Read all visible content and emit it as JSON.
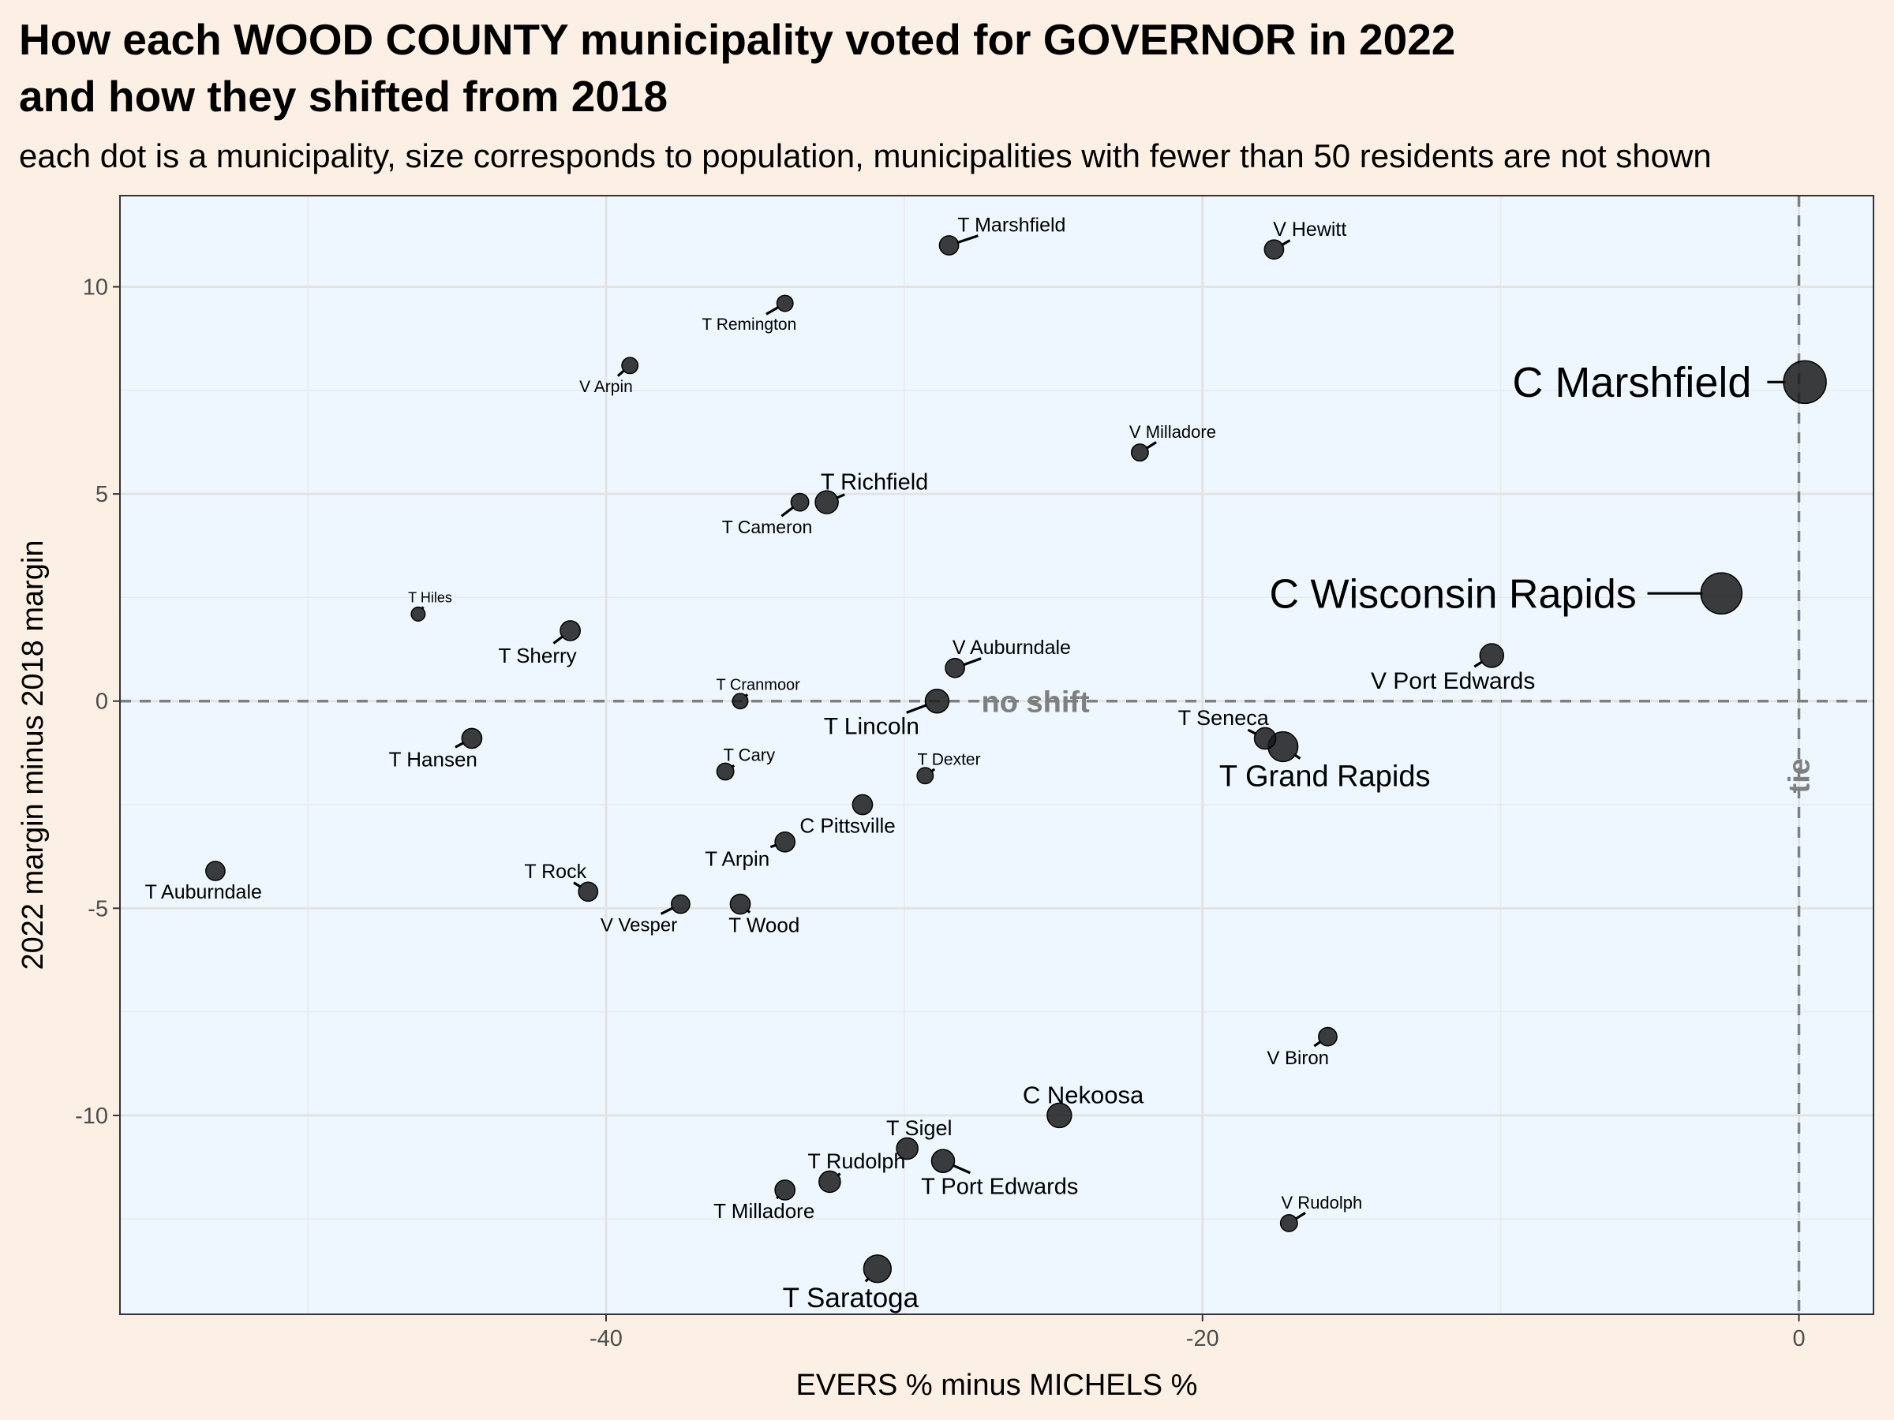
{
  "chart_data": {
    "type": "scatter",
    "title_lines": [
      "How each WOOD COUNTY municipality voted for GOVERNOR in 2022",
      "and how they shifted from 2018"
    ],
    "subtitle": "each dot is a municipality, size corresponds to population, municipalities with fewer than 50 residents are not shown",
    "xlabel": "EVERS % minus MICHELS %",
    "ylabel": "2022 margin minus 2018 margin",
    "xlim": [
      -56.3,
      2.5
    ],
    "ylim": [
      -14.8,
      12.2
    ],
    "x_ticks": [
      -40,
      -20,
      0
    ],
    "y_ticks": [
      10,
      5,
      0,
      -5,
      -10
    ],
    "reference_lines": {
      "horizontal": {
        "y": 0,
        "label": "no shift"
      },
      "vertical": {
        "x": 0,
        "label": "tie"
      }
    },
    "colors": {
      "background": "#fcf0e4",
      "panel": "#eef7ff",
      "point": "#1a1a1a",
      "reference": "#7f7f7f"
    },
    "points": [
      {
        "name": "C Marshfield",
        "x": 0.2,
        "y": 7.7,
        "size": 5,
        "lx": -5.6,
        "ly": 7.7
      },
      {
        "name": "C Wisconsin Rapids",
        "x": -2.6,
        "y": 2.6,
        "size": 4.8,
        "lx": -11.6,
        "ly": 2.6
      },
      {
        "name": "T Grand Rapids",
        "x": -17.3,
        "y": -1.1,
        "size": 3.3,
        "lx": -15.9,
        "ly": -1.8
      },
      {
        "name": "T Saratoga",
        "x": -30.9,
        "y": -13.7,
        "size": 3.0,
        "lx": -31.8,
        "ly": -14.4
      },
      {
        "name": "C Nekoosa",
        "x": -24.8,
        "y": -10.0,
        "size": 2.6,
        "lx": -24.0,
        "ly": -9.5
      },
      {
        "name": "T Lincoln",
        "x": -28.9,
        "y": 0.0,
        "size": 2.5,
        "lx": -31.1,
        "ly": -0.6
      },
      {
        "name": "V Port Edwards",
        "x": -10.3,
        "y": 1.1,
        "size": 2.5,
        "lx": -11.6,
        "ly": 0.5
      },
      {
        "name": "T Richfield",
        "x": -32.6,
        "y": 4.8,
        "size": 2.4,
        "lx": -31.0,
        "ly": 5.3
      },
      {
        "name": "T Port Edwards",
        "x": -28.7,
        "y": -11.1,
        "size": 2.4,
        "lx": -26.8,
        "ly": -11.7
      },
      {
        "name": "T Rudolph",
        "x": -32.5,
        "y": -11.6,
        "size": 2.2,
        "lx": -31.6,
        "ly": -11.1
      },
      {
        "name": "T Sigel",
        "x": -29.9,
        "y": -10.8,
        "size": 2.2,
        "lx": -29.5,
        "ly": -10.3
      },
      {
        "name": "T Seneca",
        "x": -17.9,
        "y": -0.9,
        "size": 2.2,
        "lx": -19.3,
        "ly": -0.4
      },
      {
        "name": "T Milladore",
        "x": -34.0,
        "y": -11.8,
        "size": 2.0,
        "lx": -34.7,
        "ly": -12.3
      },
      {
        "name": "T Arpin",
        "x": -34.0,
        "y": -3.4,
        "size": 2.0,
        "lx": -35.6,
        "ly": -3.8
      },
      {
        "name": "C Pittsville",
        "x": -31.4,
        "y": -2.5,
        "size": 2.0,
        "lx": -31.9,
        "ly": -3.0
      },
      {
        "name": "T Wood",
        "x": -35.5,
        "y": -4.9,
        "size": 2.0,
        "lx": -34.7,
        "ly": -5.4
      },
      {
        "name": "T Hansen",
        "x": -44.5,
        "y": -0.9,
        "size": 2.0,
        "lx": -45.8,
        "ly": -1.4
      },
      {
        "name": "T Sherry",
        "x": -41.2,
        "y": 1.7,
        "size": 2.0,
        "lx": -42.3,
        "ly": 1.1
      },
      {
        "name": "T Rock",
        "x": -40.6,
        "y": -4.6,
        "size": 1.9,
        "lx": -41.7,
        "ly": -4.1
      },
      {
        "name": "T Auburndale",
        "x": -53.1,
        "y": -4.1,
        "size": 1.9,
        "lx": -53.5,
        "ly": -4.6
      },
      {
        "name": "T Marshfield",
        "x": -28.5,
        "y": 11.0,
        "size": 1.9,
        "lx": -26.4,
        "ly": 11.5
      },
      {
        "name": "V Hewitt",
        "x": -17.6,
        "y": 10.9,
        "size": 1.9,
        "lx": -16.4,
        "ly": 11.4
      },
      {
        "name": "V Auburndale",
        "x": -28.3,
        "y": 0.8,
        "size": 1.9,
        "lx": -26.4,
        "ly": 1.3
      },
      {
        "name": "V Vesper",
        "x": -37.5,
        "y": -4.9,
        "size": 1.8,
        "lx": -38.9,
        "ly": -5.4
      },
      {
        "name": "V Biron",
        "x": -15.8,
        "y": -8.1,
        "size": 1.8,
        "lx": -16.8,
        "ly": -8.6
      },
      {
        "name": "T Cameron",
        "x": -33.5,
        "y": 4.8,
        "size": 1.7,
        "lx": -34.6,
        "ly": 4.2
      },
      {
        "name": "V Milladore",
        "x": -22.1,
        "y": 6.0,
        "size": 1.6,
        "lx": -21.0,
        "ly": 6.5
      },
      {
        "name": "V Rudolph",
        "x": -17.1,
        "y": -12.6,
        "size": 1.6,
        "lx": -16.0,
        "ly": -12.1
      },
      {
        "name": "T Cary",
        "x": -36.0,
        "y": -1.7,
        "size": 1.6,
        "lx": -35.2,
        "ly": -1.3
      },
      {
        "name": "T Dexter",
        "x": -29.3,
        "y": -1.8,
        "size": 1.5,
        "lx": -28.5,
        "ly": -1.4
      },
      {
        "name": "T Remington",
        "x": -34.0,
        "y": 9.6,
        "size": 1.5,
        "lx": -35.2,
        "ly": 9.1
      },
      {
        "name": "V Arpin",
        "x": -39.2,
        "y": 8.1,
        "size": 1.5,
        "lx": -40.0,
        "ly": 7.6
      },
      {
        "name": "T Cranmoor",
        "x": -35.5,
        "y": 0.0,
        "size": 1.4,
        "lx": -34.9,
        "ly": 0.4
      },
      {
        "name": "T Hiles",
        "x": -46.3,
        "y": 2.1,
        "size": 1.2,
        "lx": -45.9,
        "ly": 2.5
      }
    ]
  }
}
